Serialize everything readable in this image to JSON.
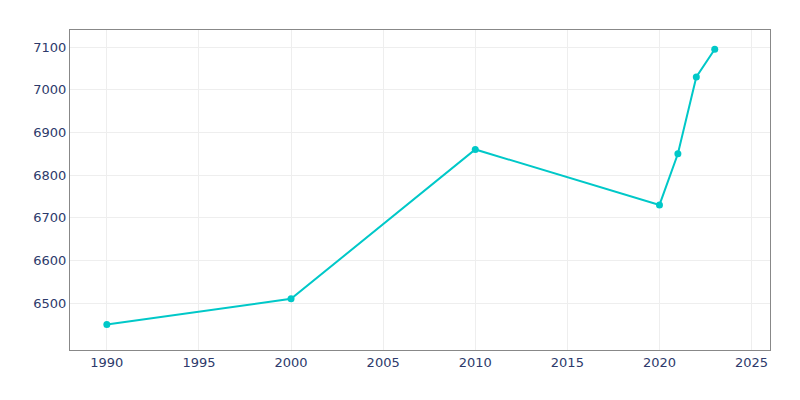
{
  "chart_data": {
    "type": "line",
    "x": [
      1990,
      2000,
      2010,
      2020,
      2021,
      2022,
      2023
    ],
    "values": [
      6450,
      6510,
      6860,
      6730,
      6850,
      7030,
      7095
    ],
    "color": "#00C8C8",
    "marker": "circle",
    "xlim": [
      1988,
      2026
    ],
    "ylim": [
      6390,
      7140
    ],
    "xticks": [
      1990,
      1995,
      2000,
      2005,
      2010,
      2015,
      2020,
      2025
    ],
    "yticks": [
      6500,
      6600,
      6700,
      6800,
      6900,
      7000,
      7100
    ],
    "grid": true
  }
}
